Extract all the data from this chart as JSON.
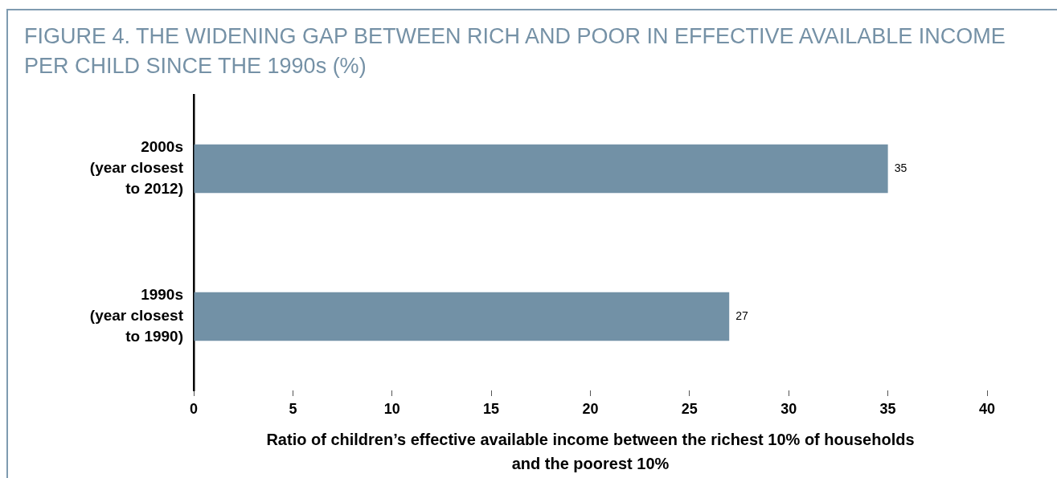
{
  "chart_data": {
    "type": "bar",
    "orientation": "horizontal",
    "title": "FIGURE 4. THE WIDENING GAP BETWEEN RICH AND POOR IN EFFECTIVE AVAILABLE INCOME PER CHILD SINCE THE 1990s (%)",
    "xlabel": "Ratio of children’s effective available income between the richest 10% of households and the poorest 10%",
    "categories": [
      "2000s\n(year closest\nto 2012)",
      "1990s\n(year closest\nto 1990)"
    ],
    "values": [
      35,
      27
    ],
    "color": "#7291a6",
    "xlim": [
      0,
      40
    ],
    "xticks": [
      0,
      5,
      10,
      15,
      20,
      25,
      30,
      35,
      40
    ],
    "data_labels": true
  }
}
